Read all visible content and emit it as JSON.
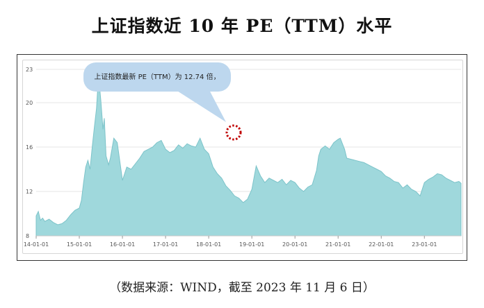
{
  "title": "上证指数近 10 年 PE（TTM）水平",
  "source": "（数据来源：WIND，截至 2023 年 11 月 6 日）",
  "callout": {
    "text": "上证指数最新 PE（TTM）为 12.74 倍，"
  },
  "colors": {
    "area_fill": "#9fd8dc",
    "area_stroke": "#7cc3c9",
    "callout_fill": "#bdd7ee",
    "marker": "#c00000",
    "grid": "#e6e6e6"
  },
  "chart_data": {
    "type": "area",
    "title": "上证指数近 10 年 PE（TTM）水平",
    "ylim": [
      8,
      23
    ],
    "y_ticks": [
      8,
      12,
      16,
      20,
      23
    ],
    "x_tick_labels": [
      "14-01-01",
      "15-01-01",
      "16-01-01",
      "17-01-01",
      "18-01-01",
      "19-01-01",
      "20-01-01",
      "21-01-01",
      "22-01-01",
      "23-01-01"
    ],
    "x_ticks": [
      2014.0,
      2015.0,
      2016.0,
      2017.0,
      2018.0,
      2019.0,
      2020.0,
      2021.0,
      2022.0,
      2023.0
    ],
    "xlim": [
      2014.0,
      2023.85
    ],
    "grid": true,
    "series": [
      {
        "x": [
          2014.0,
          2014.05,
          2014.1,
          2014.15,
          2014.2,
          2014.3,
          2014.4,
          2014.5,
          2014.6,
          2014.7,
          2014.8,
          2014.9,
          2015.0,
          2015.05,
          2015.1,
          2015.15,
          2015.2,
          2015.25,
          2015.3,
          2015.35,
          2015.4,
          2015.43,
          2015.45,
          2015.5,
          2015.55,
          2015.58,
          2015.62,
          2015.68,
          2015.72,
          2015.8,
          2015.88,
          2015.95,
          2016.0,
          2016.05,
          2016.1,
          2016.2,
          2016.3,
          2016.4,
          2016.5,
          2016.6,
          2016.7,
          2016.8,
          2016.9,
          2017.0,
          2017.1,
          2017.2,
          2017.3,
          2017.4,
          2017.5,
          2017.6,
          2017.7,
          2017.8,
          2017.9,
          2018.0,
          2018.05,
          2018.1,
          2018.2,
          2018.3,
          2018.4,
          2018.5,
          2018.6,
          2018.7,
          2018.8,
          2018.9,
          2019.0,
          2019.1,
          2019.2,
          2019.3,
          2019.4,
          2019.5,
          2019.6,
          2019.7,
          2019.8,
          2019.9,
          2020.0,
          2020.1,
          2020.2,
          2020.3,
          2020.4,
          2020.5,
          2020.55,
          2020.6,
          2020.7,
          2020.8,
          2020.9,
          2021.0,
          2021.05,
          2021.1,
          2021.15,
          2021.2,
          2021.3,
          2021.4,
          2021.5,
          2021.6,
          2021.7,
          2021.8,
          2021.9,
          2022.0,
          2022.1,
          2022.2,
          2022.3,
          2022.4,
          2022.5,
          2022.6,
          2022.7,
          2022.8,
          2022.9,
          2023.0,
          2023.1,
          2023.2,
          2023.3,
          2023.4,
          2023.5,
          2023.6,
          2023.7,
          2023.8,
          2023.85
        ],
        "y": [
          9.8,
          10.2,
          9.4,
          9.6,
          9.3,
          9.5,
          9.2,
          9.0,
          9.1,
          9.4,
          9.9,
          10.3,
          10.5,
          11.2,
          12.8,
          14.2,
          14.8,
          14.0,
          16.0,
          17.8,
          19.5,
          21.5,
          22.3,
          20.2,
          17.6,
          18.6,
          15.2,
          14.4,
          15.0,
          16.8,
          16.4,
          14.4,
          13.0,
          13.6,
          14.2,
          14.0,
          14.5,
          15.0,
          15.6,
          15.8,
          16.0,
          16.4,
          16.6,
          15.8,
          15.5,
          15.7,
          16.2,
          15.9,
          16.3,
          16.1,
          16.0,
          16.8,
          15.8,
          15.4,
          14.8,
          14.2,
          13.6,
          13.2,
          12.5,
          12.1,
          11.6,
          11.4,
          11.0,
          11.3,
          12.2,
          14.3,
          13.4,
          12.8,
          13.2,
          13.0,
          12.8,
          13.1,
          12.6,
          13.0,
          12.8,
          12.3,
          12.0,
          12.4,
          12.6,
          13.9,
          15.2,
          15.8,
          16.1,
          15.8,
          16.4,
          16.7,
          16.8,
          16.3,
          15.8,
          15.0,
          14.9,
          14.8,
          14.7,
          14.6,
          14.4,
          14.2,
          14.0,
          13.8,
          13.4,
          13.2,
          12.9,
          12.8,
          12.3,
          12.6,
          12.2,
          12.0,
          11.6,
          12.8,
          13.1,
          13.3,
          13.6,
          13.5,
          13.2,
          13.0,
          12.8,
          12.9,
          12.74
        ]
      }
    ]
  }
}
